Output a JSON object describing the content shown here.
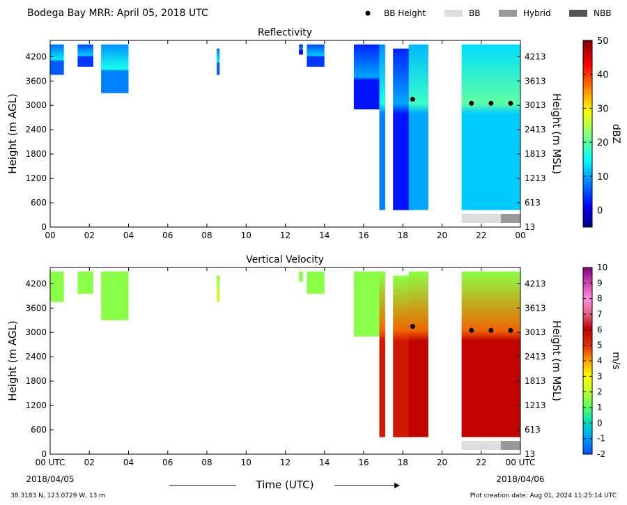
{
  "header": {
    "title": "Bodega Bay MRR:  April 05, 2018 UTC",
    "legend": [
      {
        "label": "BB Height",
        "kind": "dot",
        "color": "#000000"
      },
      {
        "label": "BB",
        "kind": "bar",
        "color": "#dddddd"
      },
      {
        "label": "Hybrid",
        "kind": "bar",
        "color": "#999999"
      },
      {
        "label": "NBB",
        "kind": "bar",
        "color": "#555555"
      }
    ]
  },
  "footer": {
    "location": "38.3183 N, 123.0729 W, 13 m",
    "created": "Plot creation date: Aug 01, 2024 11:25:14 UTC",
    "xlabel": "Time (UTC)",
    "start_date": "2018/04/05",
    "end_date": "2018/04/06"
  },
  "chart_data": [
    {
      "type": "heatmap",
      "title": "Reflectivity",
      "ylabel": "Height (m AGL)",
      "ylabel_right": "Height (m MSL)",
      "xlim": [
        0,
        24
      ],
      "ylim": [
        0,
        4600
      ],
      "xticks": [
        "00",
        "02",
        "04",
        "06",
        "08",
        "10",
        "12",
        "14",
        "16",
        "18",
        "20",
        "22",
        "00"
      ],
      "yticks": [
        0,
        600,
        1200,
        1800,
        2400,
        3000,
        3600,
        4200
      ],
      "yticks_right": [
        13,
        613,
        1213,
        1813,
        2413,
        3013,
        3613,
        4213
      ],
      "colorbar": {
        "label": "dBZ",
        "min": -5,
        "max": 50,
        "ticks": [
          0,
          10,
          20,
          30,
          40,
          50
        ],
        "colormap": "jet"
      },
      "bb_height": {
        "x": [
          18.5,
          21.5,
          22.5,
          23.5
        ],
        "y": [
          3150,
          3050,
          3050,
          3050
        ]
      },
      "bb_type": [
        {
          "from": 21.0,
          "to": 23.0,
          "type": "BB"
        },
        {
          "from": 23.0,
          "to": 24.0,
          "type": "Hybrid"
        }
      ],
      "echo_segments": [
        {
          "from": 0.0,
          "to": 0.7,
          "base": 3750,
          "top": 4500,
          "value": 10
        },
        {
          "from": 1.4,
          "to": 2.2,
          "base": 3950,
          "top": 4500,
          "value": 8
        },
        {
          "from": 2.6,
          "to": 4.0,
          "base": 3300,
          "top": 4500,
          "value": 12
        },
        {
          "from": 8.5,
          "to": 8.65,
          "base": 3750,
          "top": 4400,
          "value": 10
        },
        {
          "from": 12.7,
          "to": 12.9,
          "base": 4250,
          "top": 4500,
          "value": 5
        },
        {
          "from": 13.1,
          "to": 14.0,
          "base": 3950,
          "top": 4500,
          "value": 8
        },
        {
          "from": 15.5,
          "to": 16.9,
          "base": 2900,
          "top": 4500,
          "value": 6
        },
        {
          "from": 16.8,
          "to": 17.1,
          "base": 420,
          "top": 4500,
          "value": 12
        },
        {
          "from": 17.5,
          "to": 18.5,
          "base": 420,
          "top": 4400,
          "value": 6
        },
        {
          "from": 18.3,
          "to": 19.3,
          "base": 420,
          "top": 4500,
          "value": 14
        },
        {
          "from": 21.0,
          "to": 24.0,
          "base": 420,
          "top": 4500,
          "value": 16
        }
      ]
    },
    {
      "type": "heatmap",
      "title": "Vertical Velocity",
      "ylabel": "Height (m AGL)",
      "ylabel_right": "Height (m MSL)",
      "xlim": [
        0,
        24
      ],
      "ylim": [
        0,
        4600
      ],
      "xticks": [
        "00 UTC",
        "02",
        "04",
        "06",
        "08",
        "10",
        "12",
        "14",
        "16",
        "18",
        "20",
        "22",
        "00 UTC"
      ],
      "yticks": [
        0,
        600,
        1200,
        1800,
        2400,
        3000,
        3600,
        4200
      ],
      "yticks_right": [
        13,
        613,
        1213,
        1813,
        2413,
        3013,
        3613,
        4213
      ],
      "colorbar": {
        "label": "m/s",
        "min": -2,
        "max": 10,
        "ticks": [
          -2,
          -1,
          0,
          1,
          2,
          3,
          4,
          5,
          6,
          7,
          8,
          9,
          10
        ],
        "colormap": "velocity"
      },
      "bb_height": {
        "x": [
          18.5,
          21.5,
          22.5,
          23.5
        ],
        "y": [
          3150,
          3050,
          3050,
          3050
        ]
      },
      "bb_type": [
        {
          "from": 21.0,
          "to": 23.0,
          "type": "BB"
        },
        {
          "from": 23.0,
          "to": 24.0,
          "type": "Hybrid"
        }
      ],
      "echo_segments": [
        {
          "from": 0.0,
          "to": 0.7,
          "base": 3750,
          "top": 4500,
          "value": 1.5
        },
        {
          "from": 1.4,
          "to": 2.2,
          "base": 3950,
          "top": 4500,
          "value": 1.5
        },
        {
          "from": 2.6,
          "to": 4.0,
          "base": 3300,
          "top": 4500,
          "value": 1.5
        },
        {
          "from": 8.5,
          "to": 8.65,
          "base": 3750,
          "top": 4400,
          "value": 2
        },
        {
          "from": 12.7,
          "to": 12.9,
          "base": 4250,
          "top": 4500,
          "value": 1.5
        },
        {
          "from": 13.1,
          "to": 14.0,
          "base": 3950,
          "top": 4500,
          "value": 1.5
        },
        {
          "from": 15.5,
          "to": 16.9,
          "base": 2900,
          "top": 4500,
          "value": 1.5
        },
        {
          "from": 16.8,
          "to": 17.1,
          "base": 420,
          "top": 4500,
          "value": 5.5
        },
        {
          "from": 17.5,
          "to": 18.5,
          "base": 420,
          "top": 4400,
          "value": 5.5
        },
        {
          "from": 18.3,
          "to": 19.3,
          "base": 420,
          "top": 4500,
          "value": 6
        },
        {
          "from": 21.0,
          "to": 24.0,
          "base": 420,
          "top": 4500,
          "value": 6
        }
      ]
    }
  ]
}
